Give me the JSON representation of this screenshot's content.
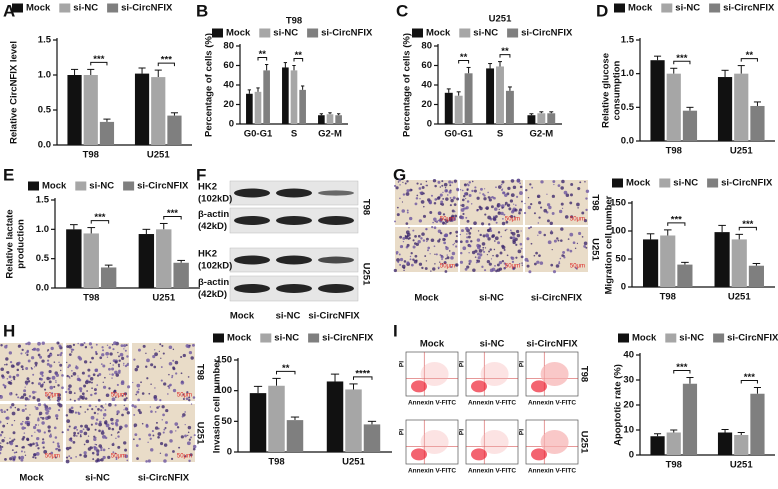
{
  "chart_data": [
    {
      "type": "bar",
      "panel": "A",
      "y_label": [
        "Relative CircNFIX level"
      ],
      "categories": [
        "T98",
        "U251"
      ],
      "series": [
        {
          "name": "Mock",
          "color": "#111111",
          "values": [
            1.0,
            1.02
          ],
          "errors": [
            0.08,
            0.08
          ]
        },
        {
          "name": "si-NC",
          "color": "#a6a6a6",
          "values": [
            1.0,
            0.97
          ],
          "errors": [
            0.08,
            0.1
          ]
        },
        {
          "name": "si-CircNFIX",
          "color": "#7f7f7f",
          "values": [
            0.33,
            0.42
          ],
          "errors": [
            0.04,
            0.04
          ]
        }
      ],
      "ylim": [
        0,
        1.5
      ],
      "yticks": [
        {
          "value": 0,
          "label": "0.0"
        },
        0.5,
        {
          "value": 1,
          "label": "1.0"
        },
        1.5
      ],
      "annotations": [
        "***",
        "***"
      ],
      "legend": "top"
    },
    {
      "type": "bar",
      "panel": "B",
      "title": "T98",
      "y_label": [
        "Percentage of cells (%)"
      ],
      "categories": [
        "G0-G1",
        "S",
        "G2-M"
      ],
      "series": [
        {
          "name": "Mock",
          "color": "#111111",
          "values": [
            31,
            58,
            9
          ],
          "errors": [
            4,
            5,
            1.5
          ]
        },
        {
          "name": "si-NC",
          "color": "#a6a6a6",
          "values": [
            33,
            55,
            10
          ],
          "errors": [
            4,
            5,
            1.5
          ]
        },
        {
          "name": "si-CircNFIX",
          "color": "#7f7f7f",
          "values": [
            55,
            35,
            9
          ],
          "errors": [
            6,
            4,
            1.5
          ]
        }
      ],
      "ylim": [
        0,
        80
      ],
      "yticks": [
        0,
        20,
        40,
        60,
        80
      ],
      "annotations": [
        "**",
        "**",
        null
      ],
      "legend": "top"
    },
    {
      "type": "bar",
      "panel": "C",
      "title": "U251",
      "y_label": [
        "Percentage of cells (%)"
      ],
      "categories": [
        "G0-G1",
        "S",
        "G2-M"
      ],
      "series": [
        {
          "name": "Mock",
          "color": "#111111",
          "values": [
            32,
            57,
            9
          ],
          "errors": [
            4,
            5,
            1.5
          ]
        },
        {
          "name": "si-NC",
          "color": "#a6a6a6",
          "values": [
            29,
            59,
            11
          ],
          "errors": [
            4,
            5,
            1.5
          ]
        },
        {
          "name": "si-CircNFIX",
          "color": "#7f7f7f",
          "values": [
            52,
            34,
            11
          ],
          "errors": [
            6,
            4,
            1.5
          ]
        }
      ],
      "ylim": [
        0,
        80
      ],
      "yticks": [
        0,
        20,
        40,
        60,
        80
      ],
      "annotations": [
        "**",
        "**",
        null
      ],
      "legend": "top"
    },
    {
      "type": "bar",
      "panel": "D",
      "y_label": [
        "Relative glucose",
        "consumption"
      ],
      "categories": [
        "T98",
        "U251"
      ],
      "series": [
        {
          "name": "Mock",
          "color": "#111111",
          "values": [
            1.2,
            0.95
          ],
          "errors": [
            0.06,
            0.1
          ]
        },
        {
          "name": "si-NC",
          "color": "#a6a6a6",
          "values": [
            1.0,
            1.0
          ],
          "errors": [
            0.08,
            0.12
          ]
        },
        {
          "name": "si-CircNFIX",
          "color": "#7f7f7f",
          "values": [
            0.45,
            0.52
          ],
          "errors": [
            0.05,
            0.06
          ]
        }
      ],
      "ylim": [
        0,
        1.5
      ],
      "yticks": [
        {
          "value": 0,
          "label": "0.0"
        },
        0.5,
        {
          "value": 1,
          "label": "1.0"
        },
        1.5
      ],
      "annotations": [
        "***",
        "**"
      ],
      "legend": "top"
    },
    {
      "type": "bar",
      "panel": "E",
      "y_label": [
        "Relative lactate",
        "production"
      ],
      "categories": [
        "T98",
        "U251"
      ],
      "series": [
        {
          "name": "Mock",
          "color": "#111111",
          "values": [
            1.0,
            0.92
          ],
          "errors": [
            0.08,
            0.08
          ]
        },
        {
          "name": "si-NC",
          "color": "#a6a6a6",
          "values": [
            0.93,
            1.0
          ],
          "errors": [
            0.1,
            0.1
          ]
        },
        {
          "name": "si-CircNFIX",
          "color": "#7f7f7f",
          "values": [
            0.35,
            0.43
          ],
          "errors": [
            0.04,
            0.04
          ]
        }
      ],
      "ylim": [
        0,
        1.5
      ],
      "yticks": [
        {
          "value": 0,
          "label": "0.0"
        },
        0.5,
        {
          "value": 1,
          "label": "1.0"
        },
        1.5
      ],
      "annotations": [
        "***",
        "***"
      ],
      "legend": "top"
    },
    {
      "type": "bar",
      "panel": "G",
      "y_label": [
        "Migration cell number"
      ],
      "categories": [
        "T98",
        "U251"
      ],
      "series": [
        {
          "name": "Mock",
          "color": "#111111",
          "values": [
            85,
            98
          ],
          "errors": [
            10,
            12
          ]
        },
        {
          "name": "si-NC",
          "color": "#a6a6a6",
          "values": [
            92,
            85
          ],
          "errors": [
            10,
            9
          ]
        },
        {
          "name": "si-CircNFIX",
          "color": "#7f7f7f",
          "values": [
            40,
            38
          ],
          "errors": [
            4,
            4
          ]
        }
      ],
      "ylim": [
        0,
        150
      ],
      "yticks": [
        0,
        50,
        100,
        150
      ],
      "annotations": [
        "***",
        "***"
      ],
      "legend": "top"
    },
    {
      "type": "bar",
      "panel": "H",
      "y_label": [
        "Invasion cell number"
      ],
      "categories": [
        "T98",
        "U251"
      ],
      "series": [
        {
          "name": "Mock",
          "color": "#111111",
          "values": [
            96,
            115
          ],
          "errors": [
            11,
            12
          ]
        },
        {
          "name": "si-NC",
          "color": "#a6a6a6",
          "values": [
            108,
            102
          ],
          "errors": [
            12,
            9
          ]
        },
        {
          "name": "si-CircNFIX",
          "color": "#7f7f7f",
          "values": [
            52,
            45
          ],
          "errors": [
            5,
            5
          ]
        }
      ],
      "ylim": [
        0,
        150
      ],
      "yticks": [
        0,
        50,
        100,
        150
      ],
      "annotations": [
        "**",
        "****"
      ],
      "legend": "top"
    },
    {
      "type": "bar",
      "panel": "I",
      "y_label": [
        "Apoptotic rate (%)"
      ],
      "categories": [
        "T98",
        "U251"
      ],
      "series": [
        {
          "name": "Mock",
          "color": "#111111",
          "values": [
            7.5,
            9
          ],
          "errors": [
            1,
            1.2
          ]
        },
        {
          "name": "si-NC",
          "color": "#a6a6a6",
          "values": [
            9,
            8
          ],
          "errors": [
            1,
            1
          ]
        },
        {
          "name": "si-CircNFIX",
          "color": "#7f7f7f",
          "values": [
            28.5,
            24.5
          ],
          "errors": [
            2.5,
            2.5
          ]
        }
      ],
      "ylim": [
        0,
        40
      ],
      "yticks": [
        0,
        10,
        20,
        30,
        40
      ],
      "annotations": [
        "***",
        "***"
      ],
      "legend": "top"
    }
  ],
  "blot": {
    "panel": "F",
    "groups": [
      "T98",
      "U251"
    ],
    "rows": [
      {
        "protein": "HK2",
        "size": "(102kD)"
      },
      {
        "protein": "β-actin",
        "size": "(42kD)"
      }
    ],
    "lanes": [
      "Mock",
      "si-NC",
      "si-CircNFIX"
    ]
  },
  "micrographs": {
    "lanes": [
      "Mock",
      "si-NC",
      "si-CircNFIX"
    ],
    "rows": [
      "T98",
      "U251"
    ],
    "scale": "50μm"
  },
  "flow": {
    "lanes": [
      "Mock",
      "si-NC",
      "si-CircNFIX"
    ],
    "rows": [
      "T98",
      "U251"
    ],
    "x_label": "Annexin V-FITC",
    "y_label": "PI"
  }
}
